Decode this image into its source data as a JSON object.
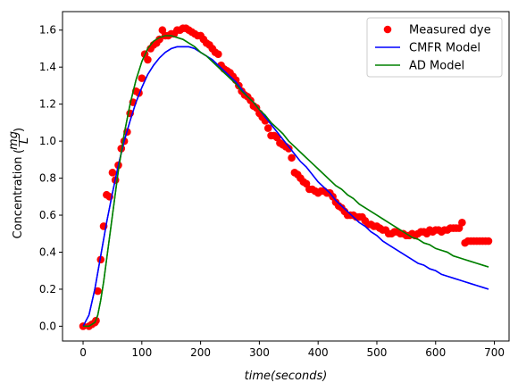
{
  "chart_data": {
    "type": "scatter",
    "xlabel": "time(seconds)",
    "ylabel_text": "Concentration",
    "ylabel_numerator": "mg",
    "ylabel_denominator": "L",
    "xlim": [
      -35,
      725
    ],
    "ylim": [
      -0.08,
      1.7
    ],
    "xticks": [
      0,
      100,
      200,
      300,
      400,
      500,
      600,
      700
    ],
    "yticks": [
      0.0,
      0.2,
      0.4,
      0.6,
      0.8,
      1.0,
      1.2,
      1.4,
      1.6
    ],
    "xtick_labels": [
      "0",
      "100",
      "200",
      "300",
      "400",
      "500",
      "600",
      "700"
    ],
    "ytick_labels": [
      "0.0",
      "0.2",
      "0.4",
      "0.6",
      "0.8",
      "1.0",
      "1.2",
      "1.4",
      "1.6"
    ],
    "grid": false,
    "legend_position": "top-right",
    "series": [
      {
        "name": "Measured dye",
        "kind": "scatter",
        "color": "#ff0000",
        "points": [
          [
            0,
            0.0
          ],
          [
            10,
            0.0
          ],
          [
            15,
            0.01
          ],
          [
            20,
            0.02
          ],
          [
            22,
            0.03
          ],
          [
            25,
            0.19
          ],
          [
            30,
            0.36
          ],
          [
            35,
            0.54
          ],
          [
            40,
            0.71
          ],
          [
            45,
            0.7
          ],
          [
            50,
            0.83
          ],
          [
            55,
            0.79
          ],
          [
            60,
            0.87
          ],
          [
            65,
            0.96
          ],
          [
            70,
            1.0
          ],
          [
            75,
            1.05
          ],
          [
            80,
            1.15
          ],
          [
            85,
            1.21
          ],
          [
            90,
            1.27
          ],
          [
            95,
            1.26
          ],
          [
            100,
            1.34
          ],
          [
            105,
            1.47
          ],
          [
            110,
            1.44
          ],
          [
            115,
            1.5
          ],
          [
            120,
            1.52
          ],
          [
            125,
            1.53
          ],
          [
            130,
            1.55
          ],
          [
            135,
            1.6
          ],
          [
            140,
            1.57
          ],
          [
            145,
            1.57
          ],
          [
            150,
            1.58
          ],
          [
            155,
            1.58
          ],
          [
            160,
            1.6
          ],
          [
            165,
            1.6
          ],
          [
            170,
            1.61
          ],
          [
            175,
            1.61
          ],
          [
            180,
            1.6
          ],
          [
            185,
            1.59
          ],
          [
            190,
            1.58
          ],
          [
            195,
            1.57
          ],
          [
            200,
            1.57
          ],
          [
            205,
            1.55
          ],
          [
            210,
            1.53
          ],
          [
            215,
            1.52
          ],
          [
            220,
            1.5
          ],
          [
            225,
            1.48
          ],
          [
            230,
            1.47
          ],
          [
            235,
            1.41
          ],
          [
            240,
            1.39
          ],
          [
            245,
            1.38
          ],
          [
            250,
            1.37
          ],
          [
            255,
            1.35
          ],
          [
            260,
            1.33
          ],
          [
            265,
            1.3
          ],
          [
            270,
            1.27
          ],
          [
            275,
            1.25
          ],
          [
            280,
            1.24
          ],
          [
            285,
            1.22
          ],
          [
            290,
            1.19
          ],
          [
            295,
            1.18
          ],
          [
            300,
            1.15
          ],
          [
            305,
            1.13
          ],
          [
            310,
            1.11
          ],
          [
            315,
            1.07
          ],
          [
            320,
            1.03
          ],
          [
            325,
            1.03
          ],
          [
            330,
            1.02
          ],
          [
            335,
            0.99
          ],
          [
            340,
            0.98
          ],
          [
            345,
            0.97
          ],
          [
            350,
            0.96
          ],
          [
            355,
            0.91
          ],
          [
            360,
            0.83
          ],
          [
            365,
            0.82
          ],
          [
            370,
            0.8
          ],
          [
            375,
            0.78
          ],
          [
            380,
            0.77
          ],
          [
            385,
            0.74
          ],
          [
            390,
            0.74
          ],
          [
            395,
            0.73
          ],
          [
            400,
            0.72
          ],
          [
            405,
            0.73
          ],
          [
            410,
            0.73
          ],
          [
            415,
            0.72
          ],
          [
            420,
            0.72
          ],
          [
            425,
            0.7
          ],
          [
            430,
            0.67
          ],
          [
            435,
            0.65
          ],
          [
            440,
            0.64
          ],
          [
            445,
            0.62
          ],
          [
            450,
            0.6
          ],
          [
            455,
            0.6
          ],
          [
            460,
            0.6
          ],
          [
            465,
            0.59
          ],
          [
            470,
            0.59
          ],
          [
            475,
            0.59
          ],
          [
            480,
            0.57
          ],
          [
            485,
            0.55
          ],
          [
            490,
            0.55
          ],
          [
            495,
            0.54
          ],
          [
            500,
            0.54
          ],
          [
            505,
            0.53
          ],
          [
            510,
            0.52
          ],
          [
            515,
            0.52
          ],
          [
            520,
            0.5
          ],
          [
            525,
            0.5
          ],
          [
            530,
            0.51
          ],
          [
            535,
            0.51
          ],
          [
            540,
            0.5
          ],
          [
            545,
            0.5
          ],
          [
            550,
            0.49
          ],
          [
            555,
            0.49
          ],
          [
            560,
            0.5
          ],
          [
            565,
            0.49
          ],
          [
            570,
            0.5
          ],
          [
            575,
            0.51
          ],
          [
            580,
            0.51
          ],
          [
            585,
            0.5
          ],
          [
            590,
            0.52
          ],
          [
            595,
            0.51
          ],
          [
            600,
            0.52
          ],
          [
            605,
            0.52
          ],
          [
            610,
            0.51
          ],
          [
            615,
            0.52
          ],
          [
            620,
            0.52
          ],
          [
            625,
            0.53
          ],
          [
            630,
            0.53
          ],
          [
            635,
            0.53
          ],
          [
            640,
            0.53
          ],
          [
            645,
            0.56
          ],
          [
            650,
            0.45
          ],
          [
            655,
            0.46
          ],
          [
            660,
            0.46
          ],
          [
            665,
            0.46
          ],
          [
            670,
            0.46
          ],
          [
            675,
            0.46
          ],
          [
            680,
            0.46
          ],
          [
            685,
            0.46
          ],
          [
            690,
            0.46
          ]
        ]
      },
      {
        "name": "CMFR Model",
        "kind": "line",
        "color": "#0000ff",
        "points": [
          [
            0,
            0.0
          ],
          [
            10,
            0.06
          ],
          [
            20,
            0.2
          ],
          [
            30,
            0.38
          ],
          [
            40,
            0.56
          ],
          [
            50,
            0.72
          ],
          [
            60,
            0.87
          ],
          [
            70,
            1.0
          ],
          [
            80,
            1.11
          ],
          [
            90,
            1.21
          ],
          [
            100,
            1.29
          ],
          [
            110,
            1.36
          ],
          [
            120,
            1.41
          ],
          [
            130,
            1.45
          ],
          [
            140,
            1.48
          ],
          [
            150,
            1.5
          ],
          [
            160,
            1.51
          ],
          [
            170,
            1.51
          ],
          [
            180,
            1.51
          ],
          [
            190,
            1.5
          ],
          [
            200,
            1.48
          ],
          [
            210,
            1.46
          ],
          [
            220,
            1.44
          ],
          [
            230,
            1.41
          ],
          [
            240,
            1.38
          ],
          [
            250,
            1.35
          ],
          [
            260,
            1.32
          ],
          [
            270,
            1.28
          ],
          [
            280,
            1.24
          ],
          [
            290,
            1.21
          ],
          [
            300,
            1.17
          ],
          [
            310,
            1.13
          ],
          [
            320,
            1.09
          ],
          [
            330,
            1.05
          ],
          [
            340,
            1.01
          ],
          [
            350,
            0.97
          ],
          [
            360,
            0.93
          ],
          [
            370,
            0.89
          ],
          [
            380,
            0.86
          ],
          [
            390,
            0.82
          ],
          [
            400,
            0.78
          ],
          [
            410,
            0.75
          ],
          [
            420,
            0.72
          ],
          [
            430,
            0.68
          ],
          [
            440,
            0.65
          ],
          [
            450,
            0.62
          ],
          [
            460,
            0.59
          ],
          [
            470,
            0.56
          ],
          [
            480,
            0.54
          ],
          [
            490,
            0.51
          ],
          [
            500,
            0.49
          ],
          [
            510,
            0.46
          ],
          [
            520,
            0.44
          ],
          [
            530,
            0.42
          ],
          [
            540,
            0.4
          ],
          [
            550,
            0.38
          ],
          [
            560,
            0.36
          ],
          [
            570,
            0.34
          ],
          [
            580,
            0.33
          ],
          [
            590,
            0.31
          ],
          [
            600,
            0.3
          ],
          [
            610,
            0.28
          ],
          [
            620,
            0.27
          ],
          [
            630,
            0.26
          ],
          [
            640,
            0.25
          ],
          [
            650,
            0.24
          ],
          [
            660,
            0.23
          ],
          [
            670,
            0.22
          ],
          [
            680,
            0.21
          ],
          [
            690,
            0.2
          ]
        ]
      },
      {
        "name": "AD Model",
        "kind": "line",
        "color": "#008000",
        "points": [
          [
            0,
            0.0
          ],
          [
            10,
            0.0
          ],
          [
            20,
            0.02
          ],
          [
            25,
            0.06
          ],
          [
            30,
            0.14
          ],
          [
            35,
            0.24
          ],
          [
            40,
            0.36
          ],
          [
            45,
            0.48
          ],
          [
            50,
            0.6
          ],
          [
            55,
            0.72
          ],
          [
            60,
            0.84
          ],
          [
            70,
            1.04
          ],
          [
            80,
            1.2
          ],
          [
            90,
            1.33
          ],
          [
            100,
            1.43
          ],
          [
            110,
            1.5
          ],
          [
            120,
            1.54
          ],
          [
            130,
            1.56
          ],
          [
            140,
            1.57
          ],
          [
            150,
            1.57
          ],
          [
            160,
            1.56
          ],
          [
            170,
            1.55
          ],
          [
            180,
            1.53
          ],
          [
            190,
            1.51
          ],
          [
            200,
            1.48
          ],
          [
            210,
            1.46
          ],
          [
            220,
            1.43
          ],
          [
            230,
            1.4
          ],
          [
            240,
            1.37
          ],
          [
            250,
            1.34
          ],
          [
            260,
            1.31
          ],
          [
            270,
            1.27
          ],
          [
            280,
            1.24
          ],
          [
            290,
            1.21
          ],
          [
            300,
            1.17
          ],
          [
            310,
            1.14
          ],
          [
            320,
            1.1
          ],
          [
            330,
            1.07
          ],
          [
            340,
            1.04
          ],
          [
            350,
            1.0
          ],
          [
            360,
            0.97
          ],
          [
            370,
            0.94
          ],
          [
            380,
            0.91
          ],
          [
            390,
            0.88
          ],
          [
            400,
            0.85
          ],
          [
            410,
            0.82
          ],
          [
            420,
            0.79
          ],
          [
            430,
            0.76
          ],
          [
            440,
            0.74
          ],
          [
            450,
            0.71
          ],
          [
            460,
            0.69
          ],
          [
            470,
            0.66
          ],
          [
            480,
            0.64
          ],
          [
            490,
            0.62
          ],
          [
            500,
            0.6
          ],
          [
            510,
            0.58
          ],
          [
            520,
            0.56
          ],
          [
            530,
            0.54
          ],
          [
            540,
            0.52
          ],
          [
            550,
            0.5
          ],
          [
            560,
            0.48
          ],
          [
            570,
            0.47
          ],
          [
            580,
            0.45
          ],
          [
            590,
            0.44
          ],
          [
            600,
            0.42
          ],
          [
            610,
            0.41
          ],
          [
            620,
            0.4
          ],
          [
            630,
            0.38
          ],
          [
            640,
            0.37
          ],
          [
            650,
            0.36
          ],
          [
            660,
            0.35
          ],
          [
            670,
            0.34
          ],
          [
            680,
            0.33
          ],
          [
            690,
            0.32
          ]
        ]
      }
    ]
  }
}
